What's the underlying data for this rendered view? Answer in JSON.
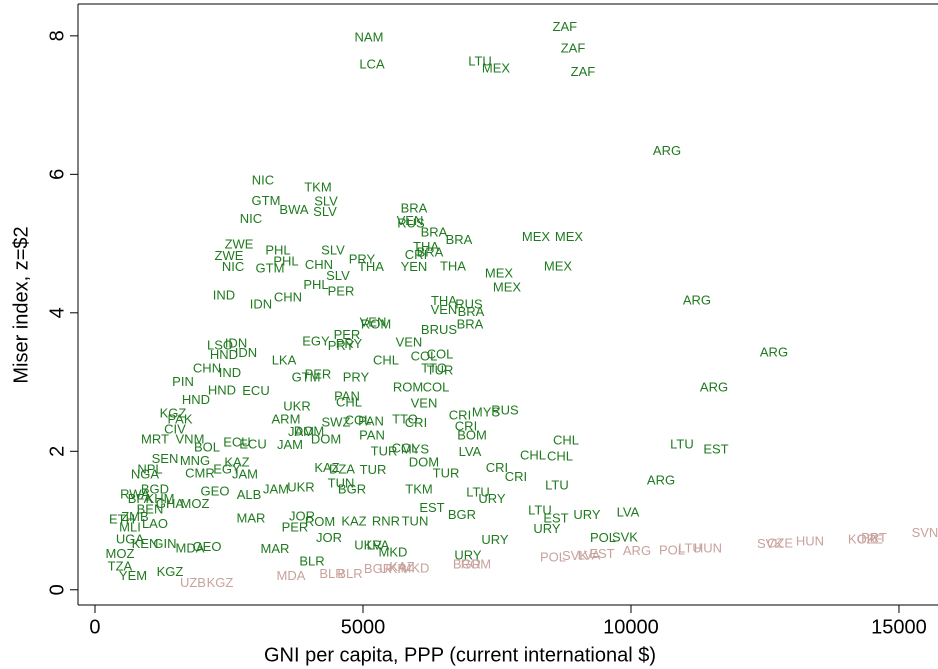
{
  "chart_data": {
    "type": "scatter",
    "xlabel": "GNI per capita, PPP (current international $)",
    "ylabel": "Miser index, z=$2",
    "xlim": [
      -317,
      15728
    ],
    "ylim": [
      -0.22,
      8.46
    ],
    "xticks": [
      0,
      5000,
      10000,
      15000
    ],
    "yticks": [
      0,
      2,
      4,
      6,
      8
    ],
    "series": [
      {
        "color": "#1f7a1f",
        "labels": [
          "ZAF",
          "NAM",
          "ZAF",
          "LCA",
          "LTU",
          "MEX",
          "ZAF",
          "ARG",
          "NIC",
          "TKM",
          "GTM",
          "SLV",
          "BWA",
          "SLV",
          "NIC",
          "BRA",
          "VEN",
          "RUS",
          "BRA",
          "BRA",
          "MEX",
          "MEX",
          "ZWE",
          "PHL",
          "SLV",
          "THA",
          "CRI",
          "BRA",
          "ZWE",
          "PRY",
          "PHL",
          "CHN",
          "NIC",
          "GTM",
          "THA",
          "YEN",
          "THA",
          "MEX",
          "MEX",
          "SLV",
          "MEX",
          "PHL",
          "PER",
          "IND",
          "IDN",
          "CHN",
          "ARG",
          "THA",
          "RUS",
          "VEN",
          "BRA",
          "VEN",
          "ROM",
          "BRA",
          "BRUS",
          "PER",
          "LSO",
          "IDN",
          "EGY",
          "PRY",
          "VEN",
          "PRY",
          "ARG",
          "HND",
          "IDN",
          "CHL",
          "COL",
          "COL",
          "LKA",
          "IND",
          "CHN",
          "TTO",
          "TUR",
          "PER",
          "GTM",
          "PRY",
          "ARG",
          "PIN",
          "HND",
          "ECU",
          "ROM",
          "COL",
          "PAN",
          "CHL",
          "VEN",
          "UKR",
          "RUS",
          "MYS",
          "CRI",
          "ARM",
          "PAN",
          "COL",
          "SWZ",
          "TTO",
          "CRI",
          "CRI",
          "JAM",
          "DOM",
          "PAN",
          "BOM",
          "DOM",
          "CHL",
          "ECU",
          "JAM",
          "LTU",
          "EST",
          "CHL",
          "MYS",
          "LVA",
          "CHL",
          "TUR",
          "DOM",
          "COL",
          "KAZ",
          "TUR",
          "CRI",
          "CRI",
          "LTU",
          "ARG",
          "TUR",
          "DZA",
          "BGR",
          "TKM",
          "LTU",
          "URY",
          "EST",
          "BGR",
          "LTU",
          "URY",
          "LVA",
          "EST",
          "URY",
          "POL",
          "SVK",
          "URY",
          "KAZ",
          "RNR",
          "TUN",
          "ROM",
          "MAR",
          "JOR",
          "PER",
          "JOR",
          "UKR",
          "LVA",
          "MKD",
          "URY",
          "MAR",
          "BLR",
          "UKR",
          "ALB",
          "JAM",
          "TUN",
          "JAM",
          "EGY",
          "KAZ",
          "BOL",
          "ECU",
          "YEM",
          "TZA",
          "KGZ",
          "GEO",
          "MDA",
          "KEN",
          "ZMB",
          "BEN",
          "MLI",
          "BFA",
          "NPL",
          "SEN",
          "CIV",
          "PAK",
          "BGD",
          "MRT",
          "NGA",
          "GHA",
          "UGA",
          "MOZ",
          "MOZ",
          "KGZ",
          "CMR",
          "GEO",
          "MNG",
          "HND",
          "GIN",
          "ETH",
          "RWA",
          "LAO",
          "KHM",
          "VNM"
        ],
        "x": [
          8765,
          5112,
          8918,
          5168,
          7183,
          7481,
          9104,
          10672,
          3134,
          4160,
          3190,
          4310,
          3713,
          4291,
          2910,
          5951,
          5877,
          5895,
          6325,
          6791,
          8228,
          8843,
          2687,
          3414,
          4440,
          6176,
          5989,
          6250,
          2500,
          4981,
          3563,
          4179,
          2575,
          3265,
          5149,
          5951,
          6679,
          8638,
          7537,
          4533,
          7687,
          4123,
          4590,
          2407,
          3097,
          3601,
          11231,
          6511,
          6978,
          6511,
          7015,
          5187,
          5243,
          6996,
          6418,
          4701,
          2332,
          2631,
          4123,
          4739,
          5858,
          4590,
          12668,
          2407,
          2817,
          5429,
          6138,
          6437,
          3526,
          2519,
          2090,
          6325,
          6437,
          4160,
          3937,
          4869,
          11549,
          1642,
          2369,
          3004,
          5840,
          6362,
          4701,
          4739,
          6138,
          3769,
          7649,
          7295,
          6810,
          3563,
          5149,
          4907,
          4496,
          5783,
          5989,
          6922,
          3843,
          3993,
          5168,
          7034,
          4310,
          8787,
          2948,
          3638,
          10951,
          11586,
          8675,
          5970,
          6996,
          8172,
          5392,
          6138,
          5783,
          4328,
          6549,
          7500,
          7854,
          8619,
          10560,
          5187,
          4608,
          4795,
          6045,
          7146,
          7407,
          6287,
          6847,
          8302,
          9179,
          9944,
          8601,
          8433,
          9478,
          9888,
          7463,
          4832,
          5429,
          5970,
          4198,
          2910,
          3862,
          3731,
          4366,
          5093,
          5280,
          5560,
          6959,
          3358,
          4049,
          3843,
          2873,
          3377,
          4590,
          2799,
          2463,
          2649,
          2090,
          2649,
          709,
          466,
          1399,
          2090,
          1772,
          933,
          746,
          1026,
          653,
          840,
          1026,
          1306,
          1493,
          1586,
          1119,
          1119,
          933,
          1399,
          653,
          466,
          1866,
          1455,
          1959,
          2239,
          1866,
          1884,
          1306,
          504,
          746,
          1119,
          1213,
          1772
        ],
        "values": [
          8.12,
          7.97,
          7.81,
          7.58,
          7.62,
          7.52,
          7.47,
          6.33,
          5.9,
          5.8,
          5.61,
          5.6,
          5.48,
          5.45,
          5.35,
          5.5,
          5.32,
          5.28,
          5.15,
          5.04,
          5.09,
          5.09,
          4.98,
          4.89,
          4.89,
          4.94,
          4.83,
          4.86,
          4.81,
          4.76,
          4.73,
          4.68,
          4.65,
          4.63,
          4.65,
          4.65,
          4.66,
          4.66,
          4.56,
          4.52,
          4.36,
          4.39,
          4.3,
          4.24,
          4.11,
          4.21,
          4.17,
          4.16,
          4.11,
          4.03,
          4.0,
          3.85,
          3.82,
          3.82,
          3.74,
          3.67,
          3.52,
          3.55,
          3.58,
          3.54,
          3.56,
          3.51,
          3.42,
          3.38,
          3.41,
          3.3,
          3.36,
          3.39,
          3.3,
          3.12,
          3.19,
          3.19,
          3.16,
          3.1,
          3.06,
          3.06,
          2.91,
          2.99,
          2.87,
          2.86,
          2.91,
          2.91,
          2.78,
          2.7,
          2.68,
          2.64,
          2.58,
          2.55,
          2.51,
          2.45,
          2.42,
          2.44,
          2.41,
          2.45,
          2.4,
          2.35,
          2.27,
          2.28,
          2.22,
          2.22,
          2.16,
          2.15,
          2.09,
          2.08,
          2.09,
          2.02,
          1.92,
          2.02,
          1.98,
          1.93,
          1.99,
          1.83,
          2.03,
          1.75,
          1.67,
          1.75,
          1.62,
          1.5,
          1.57,
          1.72,
          1.73,
          1.44,
          1.44,
          1.4,
          1.3,
          1.17,
          1.07,
          1.14,
          1.07,
          1.11,
          1.02,
          0.87,
          0.74,
          0.75,
          0.71,
          0.98,
          0.98,
          0.98,
          0.97,
          1.02,
          1.05,
          0.89,
          0.74,
          0.63,
          0.63,
          0.53,
          0.49,
          0.58,
          0.4,
          1.47,
          1.36,
          1.44,
          1.53,
          1.66,
          1.73,
          1.83,
          2.05,
          2.12,
          0.19,
          0.33,
          0.25,
          0.61,
          0.59,
          0.65,
          1.04,
          1.15,
          0.89,
          1.3,
          1.73,
          1.88,
          2.31,
          2.45,
          1.44,
          2.16,
          1.66,
          1.23,
          0.72,
          0.51,
          1.23,
          2.54,
          1.67,
          1.41,
          1.85,
          2.73,
          0.65,
          1.01,
          1.37,
          0.94,
          1.3,
          2.16
        ]
      },
      {
        "color": "#c8a29c",
        "labels": [
          "UZB",
          "KGZ",
          "MDA",
          "BLR",
          "BLR",
          "BGR",
          "UKR",
          "KAZ",
          "MKD",
          "BGR",
          "ROM",
          "POL",
          "SVK",
          "LVA",
          "EST",
          "ARG",
          "POL",
          "LTU",
          "HUN",
          "SVK",
          "CZE",
          "HUN",
          "KOR",
          "CZE",
          "PRT",
          "SVN"
        ],
        "x": [
          1828,
          2332,
          3657,
          4422,
          4757,
          5280,
          5560,
          5728,
          5970,
          6940,
          7108,
          8545,
          8955,
          9216,
          9459,
          10112,
          10765,
          11101,
          11437,
          12593,
          12780,
          13340,
          14310,
          14459,
          14534,
          15485
        ],
        "values": [
          0.09,
          0.09,
          0.19,
          0.22,
          0.22,
          0.29,
          0.29,
          0.32,
          0.3,
          0.36,
          0.36,
          0.46,
          0.48,
          0.49,
          0.51,
          0.55,
          0.56,
          0.59,
          0.59,
          0.65,
          0.66,
          0.69,
          0.72,
          0.72,
          0.74,
          0.81
        ]
      }
    ]
  }
}
